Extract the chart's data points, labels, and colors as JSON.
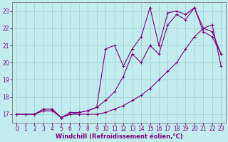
{
  "xlabel": "Windchill (Refroidissement éolien,°C)",
  "bg_color": "#c2ecee",
  "line_color": "#800080",
  "grid_color": "#9ecdd0",
  "xlim": [
    -0.5,
    23.5
  ],
  "ylim": [
    16.5,
    23.5
  ],
  "yticks": [
    17,
    18,
    19,
    20,
    21,
    22,
    23
  ],
  "xticks": [
    0,
    1,
    2,
    3,
    4,
    5,
    6,
    7,
    8,
    9,
    10,
    11,
    12,
    13,
    14,
    15,
    16,
    17,
    18,
    19,
    20,
    21,
    22,
    23
  ],
  "line1_x": [
    0,
    1,
    2,
    3,
    4,
    5,
    6,
    7,
    8,
    9,
    10,
    11,
    12,
    13,
    14,
    15,
    16,
    17,
    18,
    19,
    20,
    21,
    22,
    23
  ],
  "line1_y": [
    17.0,
    17.0,
    17.0,
    17.2,
    17.2,
    16.8,
    17.0,
    17.0,
    17.0,
    17.0,
    17.1,
    17.3,
    17.5,
    17.8,
    18.1,
    18.5,
    19.0,
    19.5,
    20.0,
    20.8,
    21.5,
    22.0,
    22.2,
    19.8
  ],
  "line2_x": [
    0,
    1,
    2,
    3,
    4,
    5,
    6,
    7,
    8,
    9,
    10,
    11,
    12,
    13,
    14,
    15,
    16,
    17,
    18,
    19,
    20,
    21,
    22,
    23
  ],
  "line2_y": [
    17.0,
    17.0,
    17.0,
    17.3,
    17.3,
    16.8,
    17.0,
    17.1,
    17.2,
    17.4,
    17.8,
    18.3,
    19.2,
    20.5,
    20.0,
    21.0,
    20.5,
    22.2,
    22.8,
    22.5,
    23.2,
    21.8,
    21.5,
    20.5
  ],
  "line3_x": [
    0,
    1,
    2,
    3,
    4,
    5,
    6,
    7,
    8,
    9,
    10,
    11,
    12,
    13,
    14,
    15,
    16,
    17,
    18,
    19,
    20,
    21,
    22,
    23
  ],
  "line3_y": [
    17.0,
    17.0,
    17.0,
    17.3,
    17.3,
    16.8,
    17.1,
    17.1,
    17.2,
    17.4,
    20.8,
    21.0,
    19.8,
    20.8,
    21.5,
    23.2,
    21.0,
    22.9,
    23.0,
    22.8,
    23.2,
    22.0,
    21.8,
    20.5
  ],
  "marker": "+",
  "markersize": 3,
  "linewidth": 0.8,
  "xlabel_fontsize": 6,
  "tick_fontsize": 5.5
}
